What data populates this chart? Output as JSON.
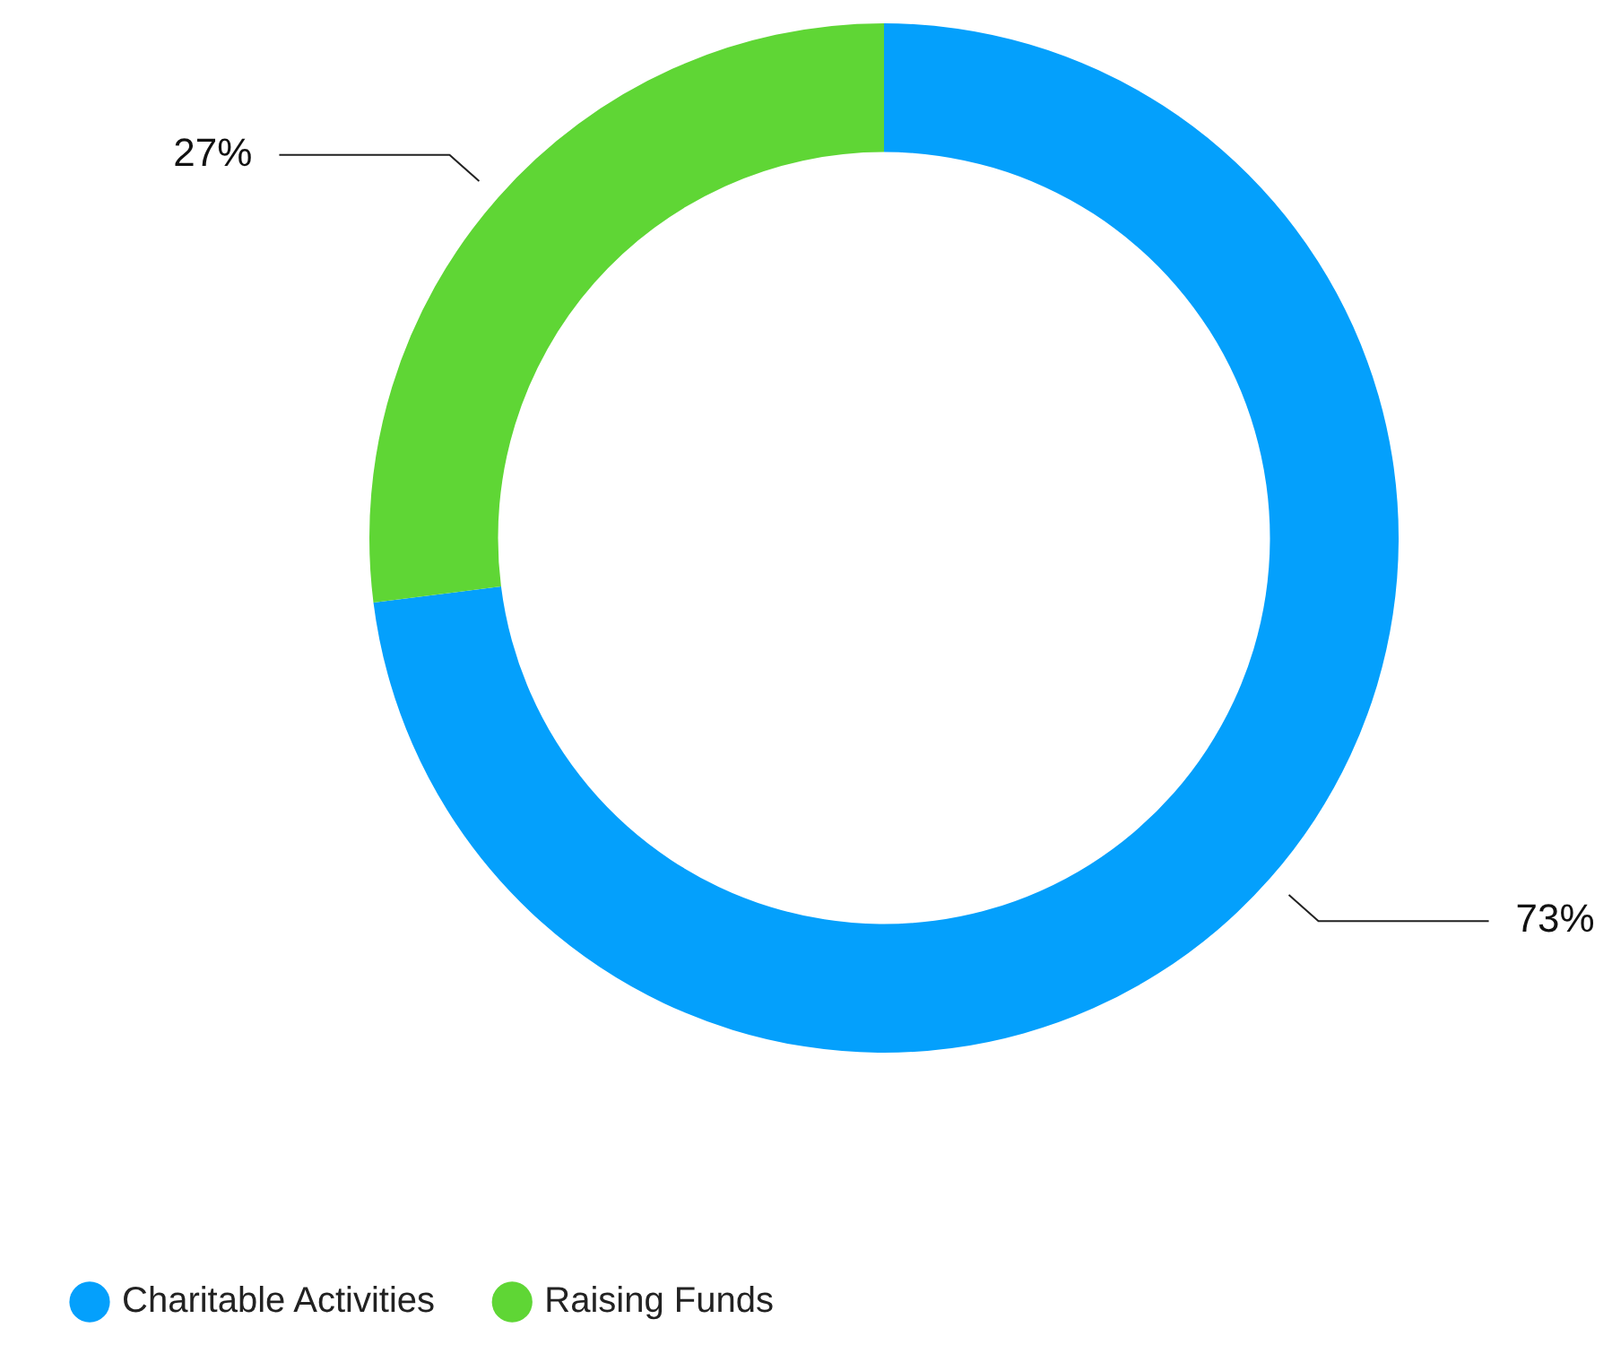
{
  "chart_data": {
    "type": "donut",
    "categories": [
      "Charitable Activities",
      "Raising Funds"
    ],
    "values": [
      73,
      27
    ],
    "colors": [
      "#04a0fc",
      "#5fd635"
    ],
    "value_labels": [
      "73%",
      "27%"
    ],
    "legend": "bottom left"
  }
}
